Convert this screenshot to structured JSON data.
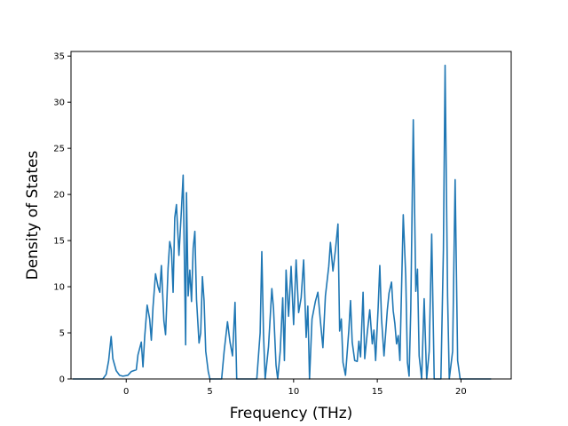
{
  "chart_data": {
    "type": "line",
    "title": "",
    "xlabel": "Frequency (THz)",
    "ylabel": "Density of States",
    "xlim": [
      -3.3,
      23.0
    ],
    "ylim": [
      0,
      35.5
    ],
    "x_ticks": [
      0,
      5,
      10,
      15,
      20
    ],
    "y_ticks": [
      0,
      5,
      10,
      15,
      20,
      25,
      30,
      35
    ],
    "grid": false,
    "line_color": "#1f77b4",
    "series": [
      {
        "points": [
          [
            -3.2,
            0
          ],
          [
            -1.4,
            0
          ],
          [
            -1.2,
            0.5
          ],
          [
            -1.05,
            2.0
          ],
          [
            -0.9,
            4.6
          ],
          [
            -0.8,
            2.2
          ],
          [
            -0.6,
            0.9
          ],
          [
            -0.4,
            0.4
          ],
          [
            -0.2,
            0.3
          ],
          [
            0.1,
            0.4
          ],
          [
            0.3,
            0.8
          ],
          [
            0.6,
            1.0
          ],
          [
            0.7,
            2.6
          ],
          [
            0.9,
            4.0
          ],
          [
            1.0,
            1.3
          ],
          [
            1.1,
            4.5
          ],
          [
            1.25,
            8.0
          ],
          [
            1.4,
            6.5
          ],
          [
            1.5,
            4.2
          ],
          [
            1.6,
            7.8
          ],
          [
            1.75,
            11.4
          ],
          [
            1.9,
            10.0
          ],
          [
            2.0,
            9.4
          ],
          [
            2.1,
            12.3
          ],
          [
            2.25,
            6.3
          ],
          [
            2.35,
            4.8
          ],
          [
            2.5,
            12.0
          ],
          [
            2.6,
            14.9
          ],
          [
            2.7,
            14.0
          ],
          [
            2.8,
            9.4
          ],
          [
            2.9,
            17.5
          ],
          [
            3.0,
            18.9
          ],
          [
            3.15,
            13.4
          ],
          [
            3.3,
            18.4
          ],
          [
            3.4,
            22.1
          ],
          [
            3.55,
            3.7
          ],
          [
            3.6,
            20.2
          ],
          [
            3.7,
            9.0
          ],
          [
            3.8,
            11.8
          ],
          [
            3.9,
            8.4
          ],
          [
            4.0,
            14.2
          ],
          [
            4.1,
            16.0
          ],
          [
            4.2,
            8.6
          ],
          [
            4.35,
            3.9
          ],
          [
            4.45,
            5.0
          ],
          [
            4.55,
            11.1
          ],
          [
            4.65,
            8.5
          ],
          [
            4.75,
            3.0
          ],
          [
            4.9,
            0.8
          ],
          [
            5.0,
            0
          ],
          [
            5.5,
            0
          ],
          [
            5.7,
            0
          ],
          [
            5.85,
            3.0
          ],
          [
            6.05,
            6.2
          ],
          [
            6.2,
            4.0
          ],
          [
            6.35,
            2.5
          ],
          [
            6.5,
            8.3
          ],
          [
            6.6,
            0
          ],
          [
            7.8,
            0
          ],
          [
            8.0,
            5.0
          ],
          [
            8.1,
            13.8
          ],
          [
            8.2,
            5.0
          ],
          [
            8.3,
            0
          ],
          [
            8.5,
            3.5
          ],
          [
            8.7,
            9.8
          ],
          [
            8.8,
            7.6
          ],
          [
            8.95,
            1.5
          ],
          [
            9.05,
            0
          ],
          [
            9.2,
            3.0
          ],
          [
            9.35,
            8.8
          ],
          [
            9.45,
            2.0
          ],
          [
            9.55,
            11.8
          ],
          [
            9.7,
            6.8
          ],
          [
            9.85,
            12.2
          ],
          [
            10.0,
            5.9
          ],
          [
            10.15,
            12.9
          ],
          [
            10.3,
            7.2
          ],
          [
            10.45,
            8.8
          ],
          [
            10.6,
            12.9
          ],
          [
            10.75,
            4.5
          ],
          [
            10.85,
            7.9
          ],
          [
            10.95,
            0
          ],
          [
            11.1,
            6.5
          ],
          [
            11.3,
            8.4
          ],
          [
            11.45,
            9.4
          ],
          [
            11.6,
            6.3
          ],
          [
            11.75,
            3.4
          ],
          [
            11.9,
            9.0
          ],
          [
            12.1,
            12.2
          ],
          [
            12.2,
            14.8
          ],
          [
            12.35,
            11.7
          ],
          [
            12.5,
            14.0
          ],
          [
            12.65,
            16.8
          ],
          [
            12.75,
            5.2
          ],
          [
            12.85,
            6.5
          ],
          [
            12.95,
            1.8
          ],
          [
            13.1,
            0.4
          ],
          [
            13.3,
            5.3
          ],
          [
            13.4,
            8.5
          ],
          [
            13.5,
            4.0
          ],
          [
            13.65,
            2.0
          ],
          [
            13.8,
            1.9
          ],
          [
            13.9,
            4.1
          ],
          [
            14.0,
            2.4
          ],
          [
            14.15,
            9.4
          ],
          [
            14.25,
            2.2
          ],
          [
            14.4,
            5.0
          ],
          [
            14.55,
            7.5
          ],
          [
            14.7,
            3.8
          ],
          [
            14.8,
            5.3
          ],
          [
            14.9,
            2.0
          ],
          [
            15.05,
            7.7
          ],
          [
            15.15,
            12.3
          ],
          [
            15.25,
            6.6
          ],
          [
            15.4,
            2.5
          ],
          [
            15.5,
            5.0
          ],
          [
            15.6,
            7.5
          ],
          [
            15.7,
            9.3
          ],
          [
            15.85,
            10.5
          ],
          [
            15.95,
            7.4
          ],
          [
            16.05,
            6.0
          ],
          [
            16.15,
            3.8
          ],
          [
            16.25,
            4.7
          ],
          [
            16.35,
            2.0
          ],
          [
            16.55,
            17.8
          ],
          [
            16.7,
            11.1
          ],
          [
            16.8,
            1.8
          ],
          [
            16.9,
            0.3
          ],
          [
            17.0,
            7.5
          ],
          [
            17.15,
            28.1
          ],
          [
            17.3,
            9.5
          ],
          [
            17.4,
            11.9
          ],
          [
            17.5,
            2.5
          ],
          [
            17.65,
            0
          ],
          [
            17.8,
            8.7
          ],
          [
            17.95,
            0
          ],
          [
            18.1,
            3.0
          ],
          [
            18.25,
            15.7
          ],
          [
            18.4,
            0
          ],
          [
            18.8,
            0
          ],
          [
            18.95,
            14.0
          ],
          [
            19.05,
            34.0
          ],
          [
            19.2,
            9.0
          ],
          [
            19.3,
            0
          ],
          [
            19.5,
            3.0
          ],
          [
            19.65,
            21.6
          ],
          [
            19.8,
            2.0
          ],
          [
            19.95,
            0
          ],
          [
            21.8,
            0
          ]
        ]
      }
    ]
  }
}
